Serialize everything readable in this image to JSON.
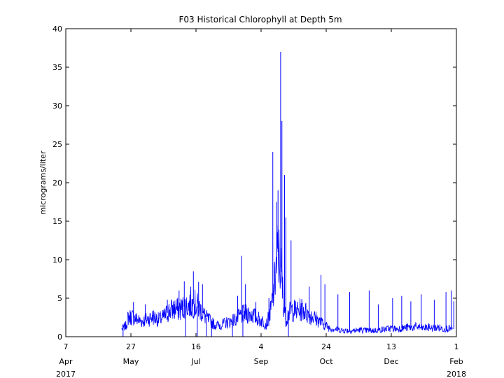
{
  "chart_data": {
    "type": "line",
    "title": "F03 Historical Chlorophyll at Depth 5m",
    "xlabel": "",
    "ylabel": "micrograms/liter",
    "ylim": [
      0,
      40
    ],
    "xlim": [
      "2017-04-07",
      "2018-02-01"
    ],
    "yticks": [
      0,
      5,
      10,
      15,
      20,
      25,
      30,
      35,
      40
    ],
    "xticks": [
      {
        "date": "2017-04-07",
        "day": "7",
        "month": "Apr",
        "year": "2017"
      },
      {
        "date": "2017-05-27",
        "day": "27",
        "month": "May",
        "year": ""
      },
      {
        "date": "2017-07-16",
        "day": "16",
        "month": "Jul",
        "year": ""
      },
      {
        "date": "2017-09-04",
        "day": "4",
        "month": "Sep",
        "year": ""
      },
      {
        "date": "2017-10-24",
        "day": "24",
        "month": "Oct",
        "year": ""
      },
      {
        "date": "2017-12-13",
        "day": "13",
        "month": "Dec",
        "year": ""
      },
      {
        "date": "2018-02-01",
        "day": "1",
        "month": "Feb",
        "year": "2018"
      }
    ],
    "grid": false,
    "line_color": "#0000ff",
    "series": [
      {
        "x": [
          "2017-05-20",
          "2017-05-23",
          "2017-05-25",
          "2017-05-28",
          "2017-06-01",
          "2017-06-05",
          "2017-06-09",
          "2017-06-13",
          "2017-06-17",
          "2017-06-21",
          "2017-06-25",
          "2017-06-29",
          "2017-07-03",
          "2017-07-07",
          "2017-07-11",
          "2017-07-15",
          "2017-07-19",
          "2017-07-23",
          "2017-07-27",
          "2017-07-31",
          "2017-08-04",
          "2017-08-08",
          "2017-08-12",
          "2017-08-16",
          "2017-08-20",
          "2017-08-24",
          "2017-08-28",
          "2017-09-01",
          "2017-09-05",
          "2017-09-08",
          "2017-09-11",
          "2017-09-13",
          "2017-09-15",
          "2017-09-17",
          "2017-09-19",
          "2017-09-21",
          "2017-09-23",
          "2017-09-25",
          "2017-09-28",
          "2017-10-02",
          "2017-10-06",
          "2017-10-10",
          "2017-10-14",
          "2017-10-18",
          "2017-10-22",
          "2017-10-26",
          "2017-10-30",
          "2017-11-03",
          "2017-11-07",
          "2017-11-11",
          "2017-11-15",
          "2017-11-19",
          "2017-11-23",
          "2017-11-27",
          "2017-12-01",
          "2017-12-05",
          "2017-12-09",
          "2017-12-13",
          "2017-12-17",
          "2017-12-21",
          "2017-12-25",
          "2017-12-29",
          "2018-01-02",
          "2018-01-06",
          "2018-01-10",
          "2018-01-14",
          "2018-01-18",
          "2018-01-22",
          "2018-01-26",
          "2018-01-29"
        ],
        "y": [
          1.0,
          1.4,
          2.5,
          2.6,
          2.2,
          2.0,
          2.3,
          2.6,
          2.2,
          2.5,
          3.3,
          3.6,
          3.5,
          3.9,
          4.1,
          4.3,
          3.6,
          2.6,
          2.0,
          1.5,
          1.5,
          1.8,
          2.0,
          2.3,
          2.8,
          3.0,
          2.9,
          2.4,
          2.0,
          1.6,
          3.0,
          5.0,
          8.0,
          11.0,
          9.0,
          5.0,
          2.2,
          3.0,
          3.5,
          3.3,
          3.6,
          2.9,
          2.6,
          2.1,
          1.6,
          1.2,
          1.0,
          0.9,
          0.8,
          0.8,
          0.8,
          0.9,
          0.8,
          0.8,
          0.8,
          0.9,
          1.0,
          1.1,
          1.0,
          1.1,
          1.2,
          1.2,
          1.3,
          1.1,
          1.2,
          1.1,
          1.2,
          1.0,
          1.1,
          1.0
        ]
      }
    ],
    "spikes": [
      {
        "x": "2017-05-29",
        "y": 4.5
      },
      {
        "x": "2017-06-07",
        "y": 4.2
      },
      {
        "x": "2017-06-24",
        "y": 4.8
      },
      {
        "x": "2017-07-03",
        "y": 6.0
      },
      {
        "x": "2017-07-07",
        "y": 7.2
      },
      {
        "x": "2017-07-12",
        "y": 6.5
      },
      {
        "x": "2017-07-14",
        "y": 8.5
      },
      {
        "x": "2017-07-18",
        "y": 7.1
      },
      {
        "x": "2017-07-21",
        "y": 6.8
      },
      {
        "x": "2017-08-17",
        "y": 5.3
      },
      {
        "x": "2017-08-20",
        "y": 10.5
      },
      {
        "x": "2017-08-23",
        "y": 6.8
      },
      {
        "x": "2017-08-31",
        "y": 4.5
      },
      {
        "x": "2017-09-10",
        "y": 5.0
      },
      {
        "x": "2017-09-13",
        "y": 24.0
      },
      {
        "x": "2017-09-16",
        "y": 17.5
      },
      {
        "x": "2017-09-17",
        "y": 19.0
      },
      {
        "x": "2017-09-19",
        "y": 37.0
      },
      {
        "x": "2017-09-20",
        "y": 28.0
      },
      {
        "x": "2017-09-22",
        "y": 21.0
      },
      {
        "x": "2017-09-23",
        "y": 15.5
      },
      {
        "x": "2017-09-27",
        "y": 12.5
      },
      {
        "x": "2017-10-11",
        "y": 6.5
      },
      {
        "x": "2017-10-20",
        "y": 8.0
      },
      {
        "x": "2017-10-23",
        "y": 6.8
      },
      {
        "x": "2017-11-02",
        "y": 5.5
      },
      {
        "x": "2017-11-11",
        "y": 5.8
      },
      {
        "x": "2017-11-26",
        "y": 6.0
      },
      {
        "x": "2017-12-03",
        "y": 4.2
      },
      {
        "x": "2017-12-14",
        "y": 5.0
      },
      {
        "x": "2017-12-21",
        "y": 5.3
      },
      {
        "x": "2017-12-28",
        "y": 4.6
      },
      {
        "x": "2018-01-05",
        "y": 5.5
      },
      {
        "x": "2018-01-15",
        "y": 4.8
      },
      {
        "x": "2018-01-24",
        "y": 5.8
      },
      {
        "x": "2018-01-28",
        "y": 6.0
      },
      {
        "x": "2018-01-30",
        "y": 4.6
      }
    ],
    "dips": [
      {
        "x": "2017-05-21",
        "y": 0.0
      },
      {
        "x": "2017-07-08",
        "y": 0.0
      },
      {
        "x": "2017-07-17",
        "y": 0.0
      },
      {
        "x": "2017-07-24",
        "y": 0.0
      },
      {
        "x": "2017-07-28",
        "y": 0.0
      },
      {
        "x": "2017-08-13",
        "y": 0.0
      },
      {
        "x": "2017-08-21",
        "y": 0.0
      },
      {
        "x": "2017-09-25",
        "y": 0.0
      }
    ]
  }
}
